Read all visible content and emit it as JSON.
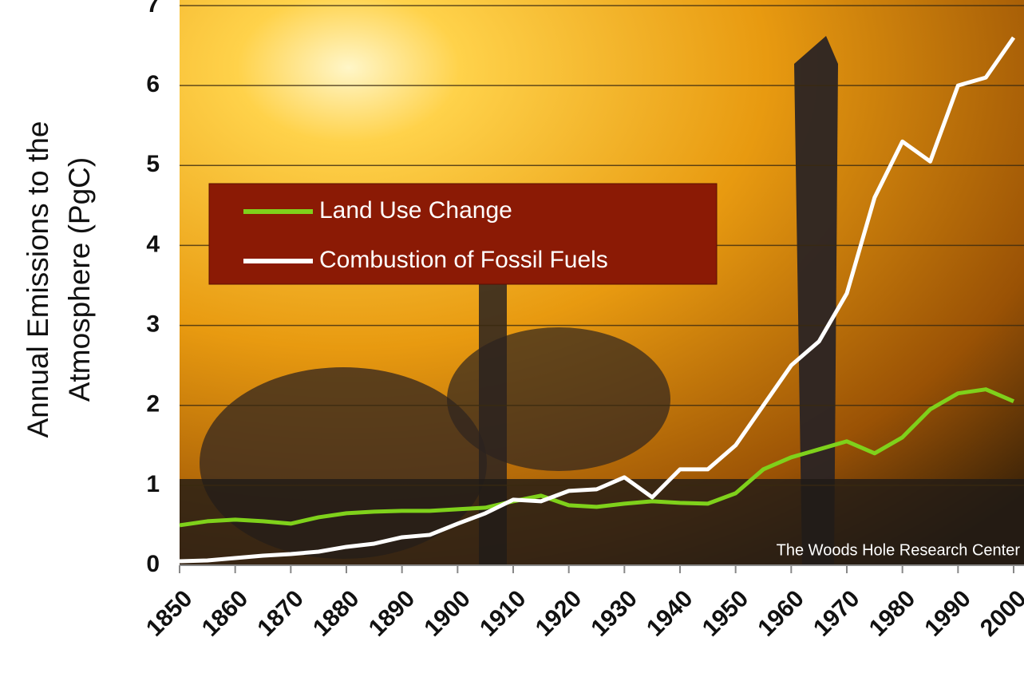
{
  "chart_data": {
    "type": "line",
    "y_label": [
      "Annual Emissions to the",
      "Atmosphere (PgC)"
    ],
    "credit": "The Woods Hole Research Center",
    "x": [
      1850,
      1855,
      1860,
      1865,
      1870,
      1875,
      1880,
      1885,
      1890,
      1895,
      1900,
      1905,
      1910,
      1915,
      1920,
      1925,
      1930,
      1935,
      1940,
      1945,
      1950,
      1955,
      1960,
      1965,
      1970,
      1975,
      1980,
      1985,
      1990,
      1995,
      2000
    ],
    "series": [
      {
        "name": "Land Use Change",
        "color": "#7fd11b",
        "values": [
          0.5,
          0.55,
          0.57,
          0.55,
          0.52,
          0.6,
          0.65,
          0.67,
          0.68,
          0.68,
          0.7,
          0.72,
          0.8,
          0.87,
          0.75,
          0.73,
          0.77,
          0.8,
          0.78,
          0.77,
          0.9,
          1.2,
          1.35,
          1.45,
          1.55,
          1.4,
          1.6,
          1.95,
          2.15,
          2.2,
          2.05
        ]
      },
      {
        "name": "Combustion of Fossil Fuels",
        "color": "#ffffff",
        "values": [
          0.05,
          0.06,
          0.09,
          0.12,
          0.14,
          0.17,
          0.23,
          0.27,
          0.35,
          0.38,
          0.52,
          0.65,
          0.82,
          0.8,
          0.93,
          0.95,
          1.1,
          0.85,
          1.2,
          1.2,
          1.5,
          2.0,
          2.5,
          2.8,
          3.4,
          4.6,
          5.3,
          5.05,
          6.0,
          6.1,
          6.6
        ]
      }
    ],
    "xlim": [
      1850,
      2000
    ],
    "xticks": [
      1850,
      1860,
      1870,
      1880,
      1890,
      1900,
      1910,
      1920,
      1930,
      1940,
      1950,
      1960,
      1970,
      1980,
      1990,
      2000
    ],
    "ylim": [
      0,
      7
    ],
    "yticks": [
      0,
      1,
      2,
      3,
      4,
      5,
      6,
      7
    ],
    "grid": true,
    "legend": "upper-left"
  }
}
